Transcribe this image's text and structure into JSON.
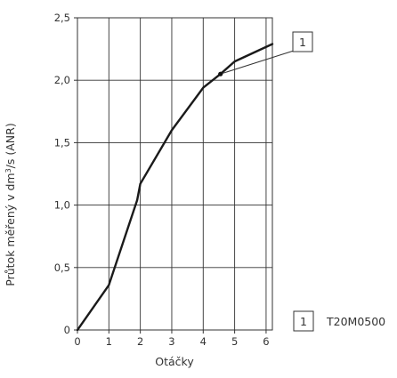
{
  "chart_data": {
    "type": "line",
    "title": "",
    "xlabel": "Otáčky",
    "ylabel_parts": [
      "Průtok měřený v dm",
      "3",
      "/s (ANR)"
    ],
    "xlim": [
      0,
      6.2
    ],
    "ylim": [
      0,
      2.5
    ],
    "xticks": [
      "0",
      "1",
      "2",
      "3",
      "4",
      "5",
      "6"
    ],
    "yticks": [
      "0",
      "0,5",
      "1,0",
      "1,5",
      "2,0",
      "2,5"
    ],
    "grid": true,
    "series": [
      {
        "name": "T20M0500",
        "marker_label": "1",
        "x": [
          0,
          1,
          1.9,
          2,
          3,
          4,
          4.55,
          5,
          6.2
        ],
        "y": [
          0,
          0.36,
          1.04,
          1.17,
          1.6,
          1.94,
          2.05,
          2.15,
          2.29
        ]
      }
    ],
    "annotation": {
      "label": "1",
      "x": 4.55,
      "y": 2.05
    },
    "legend": {
      "placement": "bottom-right",
      "items": [
        {
          "key": "1",
          "text": "T20M0500"
        }
      ]
    },
    "colors": {
      "line": "#1a1a1a",
      "grid": "#333333",
      "text": "#333333"
    }
  }
}
